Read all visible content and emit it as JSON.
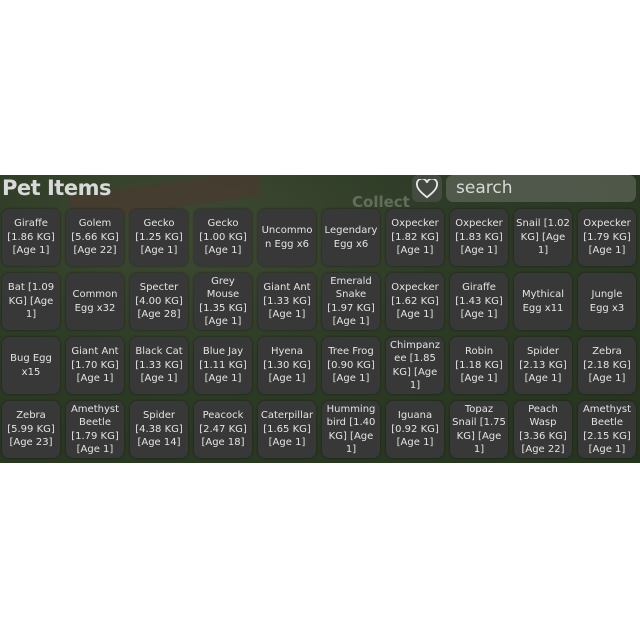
{
  "header": {
    "title": "Pet Items",
    "search_placeholder": "search",
    "background_label": "Collect"
  },
  "icons": {
    "favorite": "heart-outline-icon"
  },
  "items": [
    "Giraffe\n[1.86 KG]\n[Age 1]",
    "Golem\n[5.66 KG]\n[Age 22]",
    "Gecko\n[1.25 KG]\n[Age 1]",
    "Gecko\n[1.00 KG]\n[Age 1]",
    "Uncommo\nn Egg x6",
    "Legendary\nEgg x6",
    "Oxpecker\n[1.82 KG]\n[Age 1]",
    "Oxpecker\n[1.83 KG]\n[Age 1]",
    "Snail [1.02\nKG] [Age\n1]",
    "Oxpecker\n[1.79 KG]\n[Age 1]",
    "Bat [1.09\nKG] [Age\n1]",
    "Common\nEgg x32",
    "Specter\n[4.00 KG]\n[Age 28]",
    "Grey\nMouse\n[1.35 KG]\n[Age 1]",
    "Giant Ant\n[1.33 KG]\n[Age 1]",
    "Emerald\nSnake\n[1.97 KG]\n[Age 1]",
    "Oxpecker\n[1.62 KG]\n[Age 1]",
    "Giraffe\n[1.43 KG]\n[Age 1]",
    "Mythical\nEgg x11",
    "Jungle\nEgg x3",
    "Bug Egg\nx15",
    "Giant Ant\n[1.70 KG]\n[Age 1]",
    "Black Cat\n[1.33 KG]\n[Age 1]",
    "Blue Jay\n[1.11 KG]\n[Age 1]",
    "Hyena\n[1.30 KG]\n[Age 1]",
    "Tree Frog\n[0.90 KG]\n[Age 1]",
    "Chimpanz\nee [1.85\nKG] [Age\n1]",
    "Robin\n[1.18 KG]\n[Age 1]",
    "Spider\n[2.13 KG]\n[Age 1]",
    "Zebra\n[2.18 KG]\n[Age 1]",
    "Zebra\n[5.99 KG]\n[Age 23]",
    "Amethyst\nBeetle\n[1.79 KG]\n[Age 1]",
    "Spider\n[4.38 KG]\n[Age 14]",
    "Peacock\n[2.47 KG]\n[Age 18]",
    "Caterpillar\n[1.65 KG]\n[Age 1]",
    "Humming\nbird [1.40\nKG] [Age\n1]",
    "Iguana\n[0.92 KG]\n[Age 1]",
    "Topaz\nSnail [1.75\nKG] [Age\n1]",
    "Peach\nWasp\n[3.36 KG]\n[Age 22]",
    "Amethyst\nBeetle\n[2.15 KG]\n[Age 1]"
  ]
}
